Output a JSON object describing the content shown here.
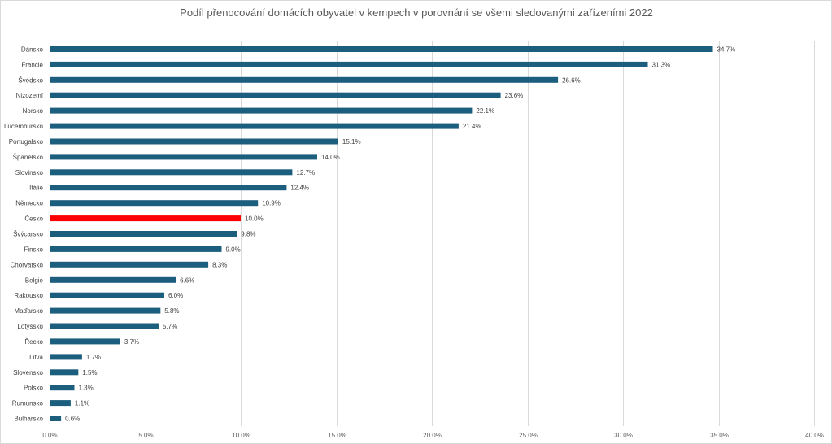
{
  "chart_data": {
    "type": "bar",
    "orientation": "horizontal",
    "title": "Podíl přenocování domácích obyvatel v kempech v porovnání se všemi sledovanými zařízeními 2022",
    "xlabel": "",
    "ylabel": "",
    "xlim": [
      0,
      40
    ],
    "x_ticks": [
      "0.0%",
      "5.0%",
      "10.0%",
      "15.0%",
      "20.0%",
      "25.0%",
      "30.0%",
      "35.0%",
      "40.0%"
    ],
    "grid": true,
    "legend": "none",
    "categories": [
      "Dánsko",
      "Francie",
      "Švédsko",
      "Nizozemí",
      "Norsko",
      "Lucembursko",
      "Portugalsko",
      "Španělsko",
      "Slovinsko",
      "Itálie",
      "Německo",
      "Česko",
      "Švýcarsko",
      "Finsko",
      "Chorvatsko",
      "Belgie",
      "Rakousko",
      "Maďarsko",
      "Lotyšsko",
      "Řecko",
      "Litva",
      "Slovensko",
      "Polsko",
      "Rumunsko",
      "Bulharsko"
    ],
    "values": [
      34.7,
      31.3,
      26.6,
      23.6,
      22.1,
      21.4,
      15.1,
      14.0,
      12.7,
      12.4,
      10.9,
      10.0,
      9.8,
      9.0,
      8.3,
      6.6,
      6.0,
      5.8,
      5.7,
      3.7,
      1.7,
      1.5,
      1.3,
      1.1,
      0.6
    ],
    "value_labels": [
      "34.7%",
      "31.3%",
      "26.6%",
      "23.6%",
      "22.1%",
      "21.4%",
      "15.1%",
      "14.0%",
      "12.7%",
      "12.4%",
      "10.9%",
      "10.0%",
      "9.8%",
      "9.0%",
      "8.3%",
      "6.6%",
      "6.0%",
      "5.8%",
      "5.7%",
      "3.7%",
      "1.7%",
      "1.5%",
      "1.3%",
      "1.1%",
      "0.6%"
    ],
    "colors": {
      "bar": "#1b5e7e",
      "highlight": "#ff0000",
      "highlight_category": "Česko"
    }
  }
}
